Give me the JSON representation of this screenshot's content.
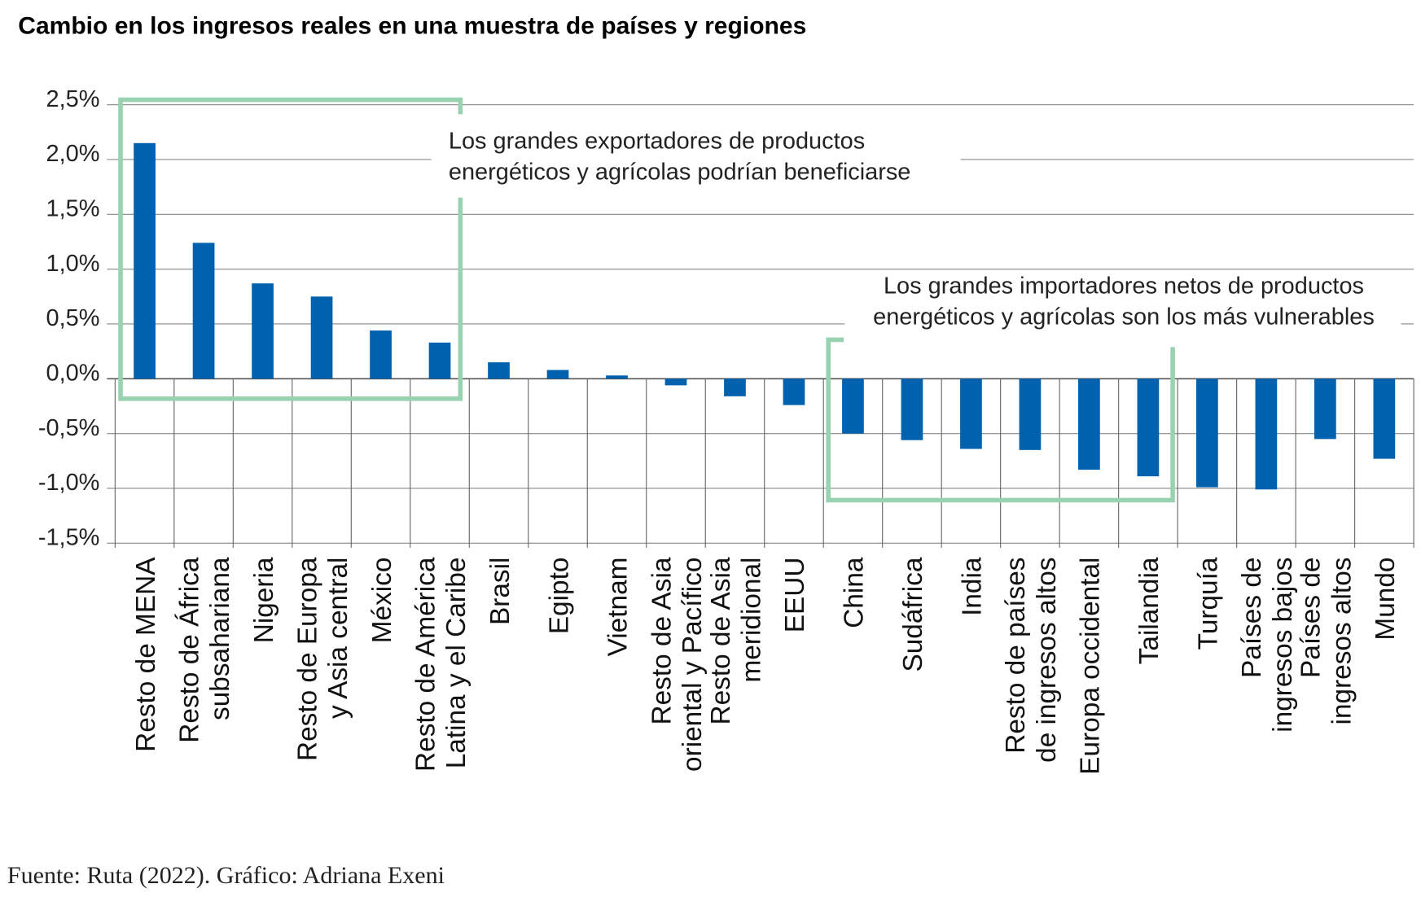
{
  "chart_data": {
    "type": "bar",
    "title": "Cambio en los ingresos reales en una muestra de países y regiones",
    "xlabel": "",
    "ylabel": "",
    "ylim": [
      -1.5,
      2.5
    ],
    "yticks": [
      2.5,
      2.0,
      1.5,
      1.0,
      0.5,
      0.0,
      -0.5,
      -1.0,
      -1.5
    ],
    "ytick_labels": [
      "2,5%",
      "2,0%",
      "1,5%",
      "1,0%",
      "0,5%",
      "0,0%",
      "-0,5%",
      "-1,0%",
      "-1,5%"
    ],
    "grid": true,
    "categories": [
      [
        "Resto de MENA"
      ],
      [
        "Resto de África",
        "subsahariana"
      ],
      [
        "Nigeria"
      ],
      [
        "Resto de Europa",
        "y Asia central"
      ],
      [
        "México"
      ],
      [
        "Resto de América",
        "Latina y el Caribe"
      ],
      [
        "Brasil"
      ],
      [
        "Egipto"
      ],
      [
        "Vietnam"
      ],
      [
        "Resto de Asia",
        "oriental y Pacífico"
      ],
      [
        "Resto de Asia",
        "meridional"
      ],
      [
        "EEUU"
      ],
      [
        "China"
      ],
      [
        "Sudáfrica"
      ],
      [
        "India"
      ],
      [
        "Resto de países",
        "de ingresos altos"
      ],
      [
        "Europa occidental"
      ],
      [
        "Tailandia"
      ],
      [
        "Turquía"
      ],
      [
        "Países de",
        "ingresos bajos"
      ],
      [
        "Países de",
        "ingresos altos"
      ],
      [
        "Mundo"
      ]
    ],
    "values": [
      2.15,
      1.24,
      0.87,
      0.75,
      0.44,
      0.33,
      0.15,
      0.08,
      0.03,
      -0.06,
      -0.16,
      -0.24,
      -0.5,
      -0.56,
      -0.64,
      -0.65,
      -0.83,
      -0.89,
      -0.99,
      -1.01,
      -0.55,
      -0.73
    ],
    "bar_color": "#0061ae",
    "annotations": [
      {
        "lines": [
          "Los grandes exportadores de productos",
          "energéticos y agrícolas podrían beneficiarse"
        ],
        "group": [
          0,
          5
        ]
      },
      {
        "lines": [
          "Los grandes importadores netos de productos",
          "energéticos y agrícolas son los más vulnerables"
        ],
        "group": [
          12,
          17
        ]
      }
    ],
    "highlight_color": "#98d2b0"
  },
  "footer": "Fuente: Ruta (2022). Gráfico: Adriana Exeni"
}
